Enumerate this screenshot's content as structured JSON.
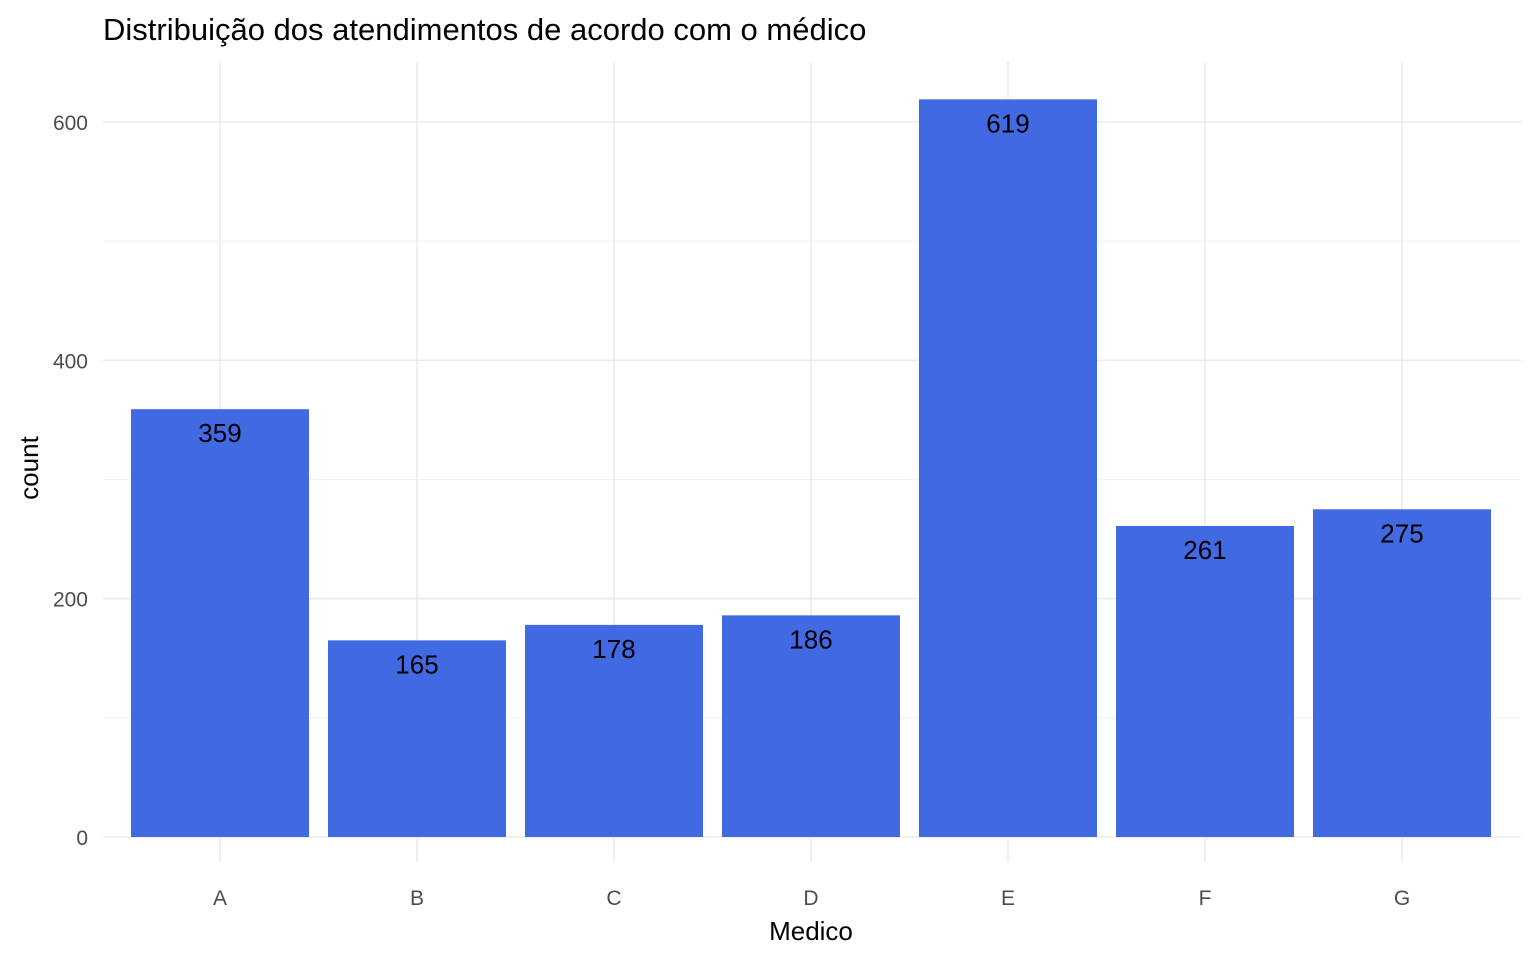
{
  "chart_data": {
    "type": "bar",
    "title": "Distribuição dos atendimentos de acordo com o médico",
    "xlabel": "Medico",
    "ylabel": "count",
    "categories": [
      "A",
      "B",
      "C",
      "D",
      "E",
      "F",
      "G"
    ],
    "values": [
      359,
      165,
      178,
      186,
      619,
      261,
      275
    ],
    "data_labels": [
      "359",
      "165",
      "178",
      "186",
      "619",
      "261",
      "275"
    ],
    "ylim": [
      0,
      650
    ],
    "yticks": [
      0,
      200,
      400,
      600
    ],
    "ytick_labels": [
      "0",
      "200",
      "400",
      "600"
    ],
    "grid": true,
    "bar_color": "#4169E1"
  }
}
